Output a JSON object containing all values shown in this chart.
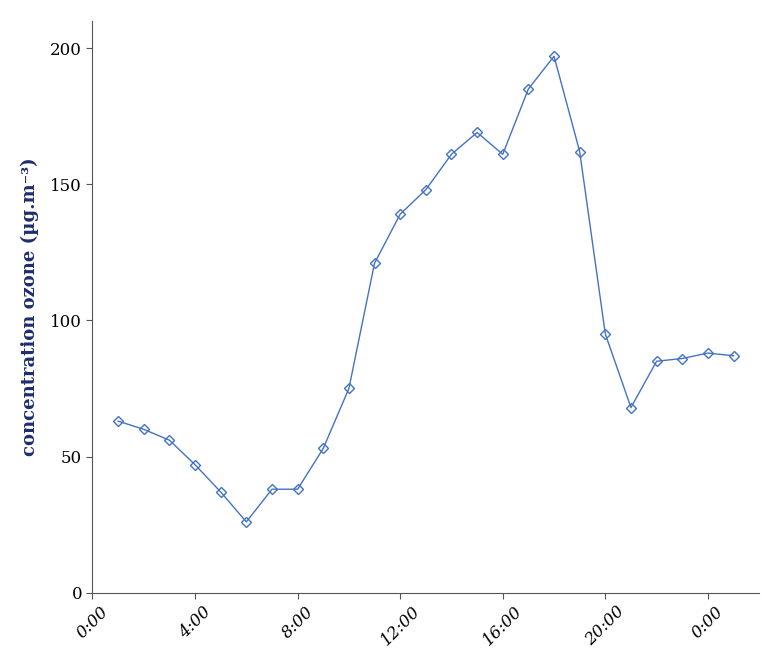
{
  "ylabel": "concentration ozone (µg.m⁻³)",
  "x_tick_labels": [
    "0:00",
    "4:00",
    "8:00",
    "12:00",
    "16:00",
    "20:00",
    "0:00"
  ],
  "x_tick_positions": [
    0,
    4,
    8,
    12,
    16,
    20,
    24
  ],
  "ylim": [
    0,
    210
  ],
  "yticks": [
    0,
    50,
    100,
    150,
    200
  ],
  "hours": [
    1,
    2,
    3,
    4,
    5,
    6,
    7,
    8,
    9,
    10,
    11,
    12,
    13,
    14,
    15,
    16,
    17,
    18,
    19,
    20,
    21,
    22,
    23,
    24,
    25
  ],
  "values": [
    63,
    60,
    56,
    47,
    37,
    26,
    38,
    38,
    53,
    75,
    121,
    139,
    148,
    161,
    169,
    161,
    185,
    197,
    162,
    95,
    68,
    85,
    86,
    88,
    87
  ],
  "line_color": "#4472C4",
  "marker": "D",
  "marker_size": 5,
  "line_width": 1.0,
  "background_color": "#ffffff",
  "ylabel_color": "#1F2D6B",
  "ylabel_fontsize": 13,
  "ytick_fontsize": 12,
  "xtick_fontsize": 12
}
